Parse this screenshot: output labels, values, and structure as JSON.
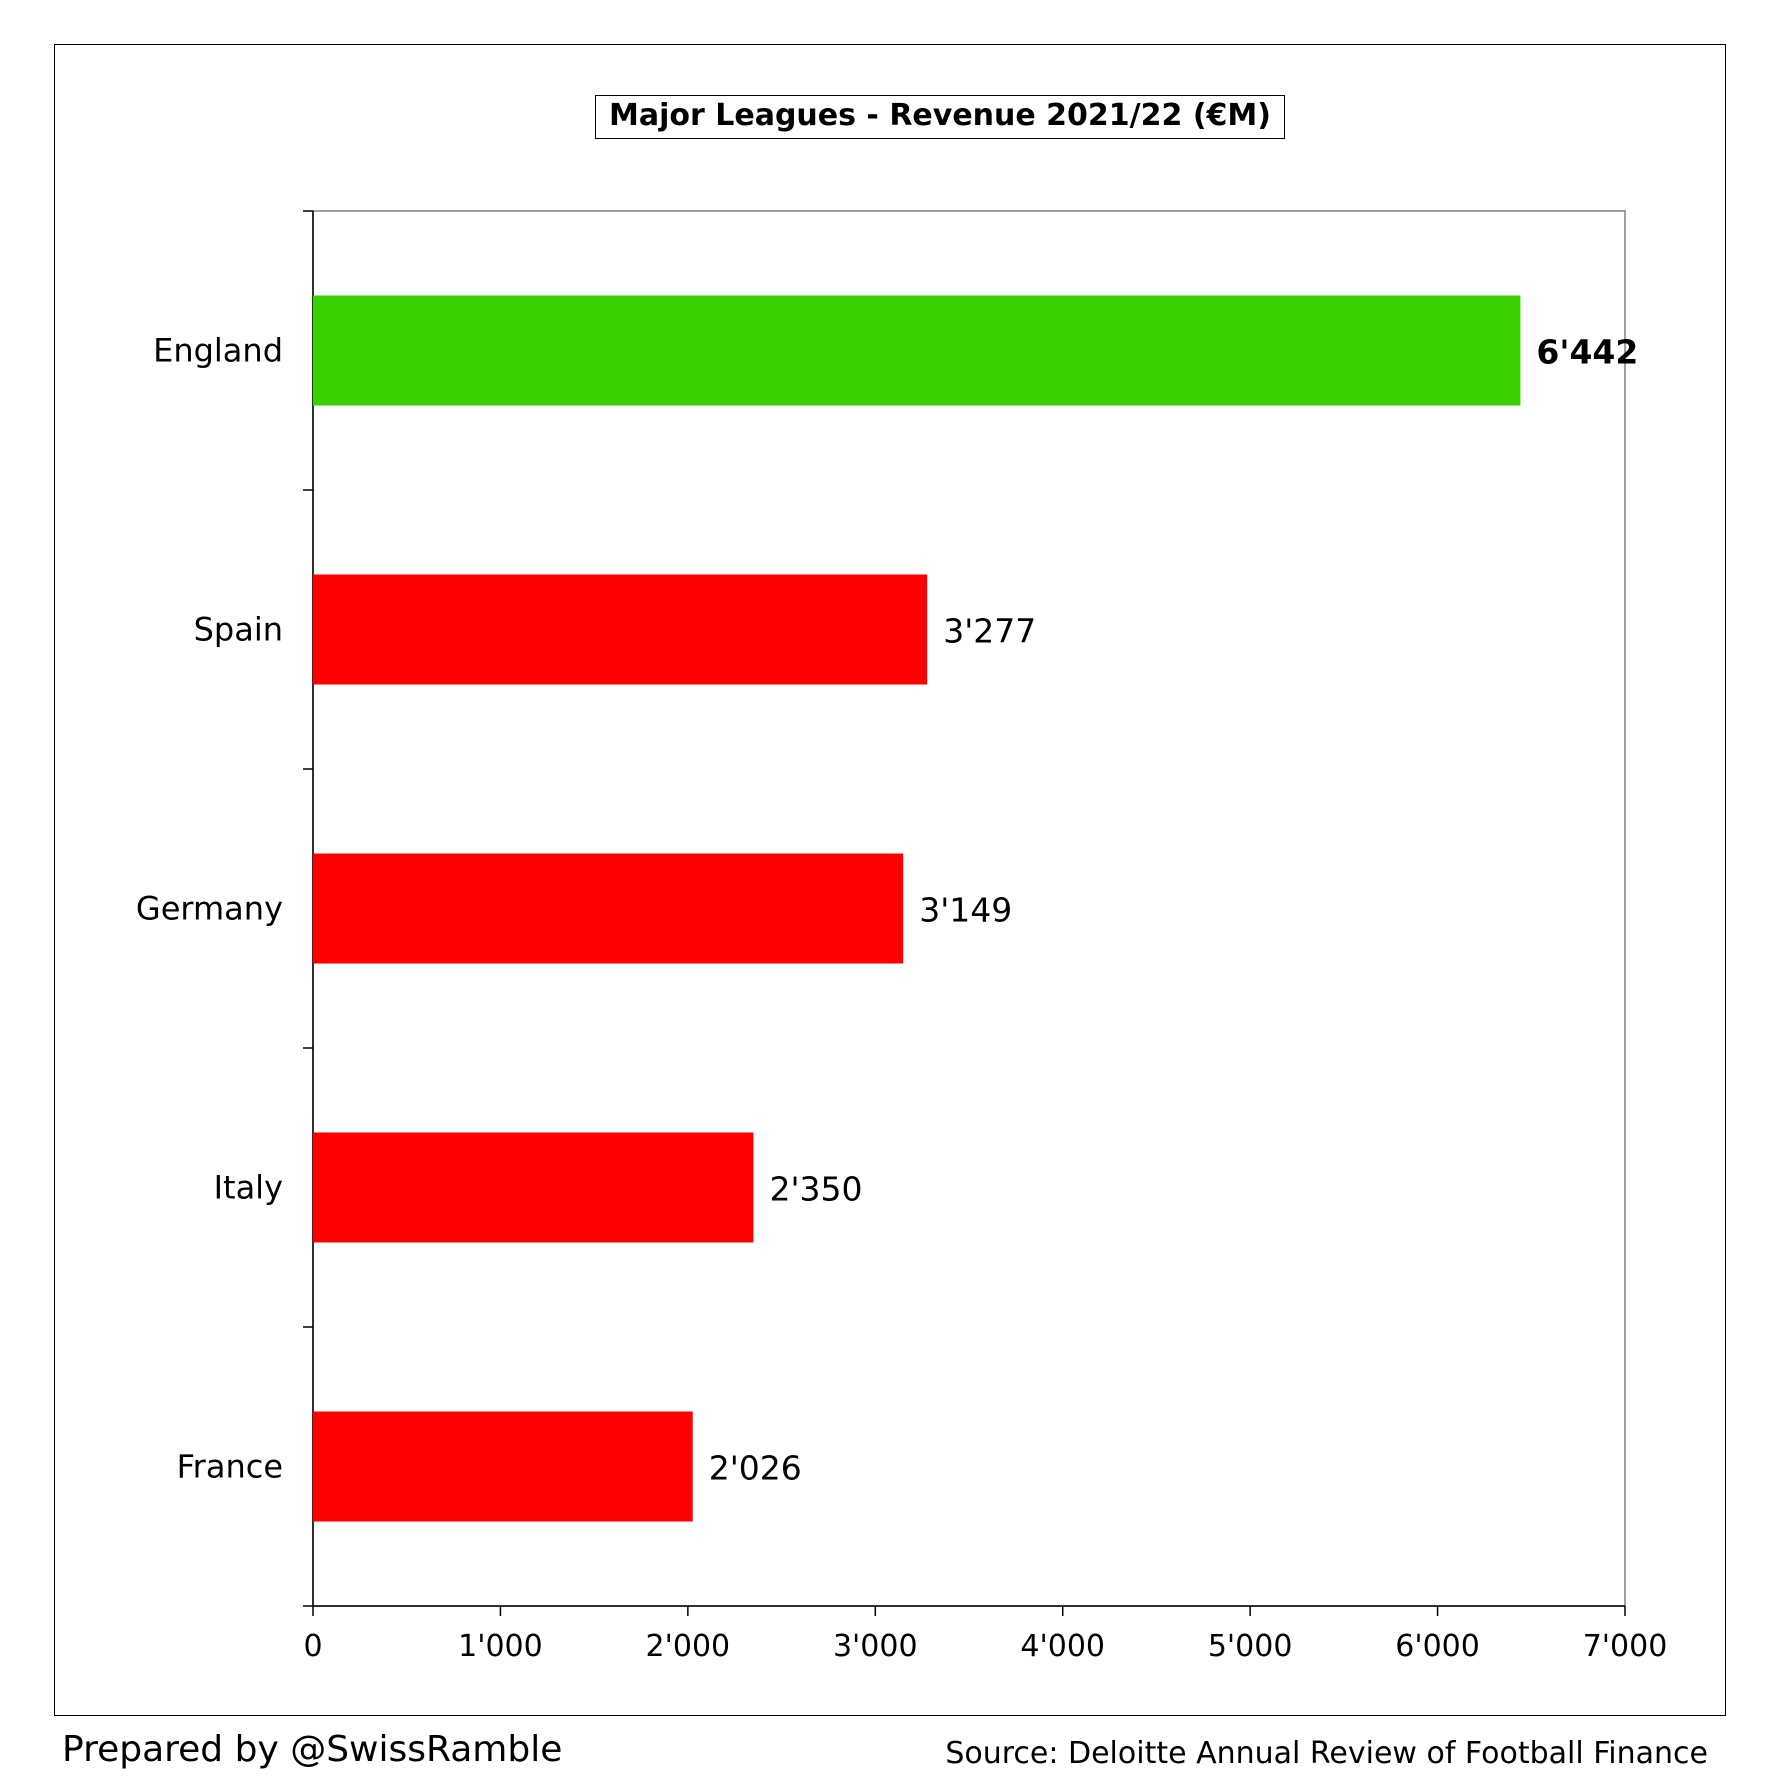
{
  "chart_data": {
    "type": "bar",
    "orientation": "horizontal",
    "title": "Major Leagues - Revenue 2021/22 (€M)",
    "categories": [
      "England",
      "Spain",
      "Germany",
      "Italy",
      "France"
    ],
    "values": [
      6442,
      3277,
      3149,
      2350,
      2026
    ],
    "value_labels": [
      "6'442",
      "3'277",
      "3'149",
      "2'350",
      "2'026"
    ],
    "highlight": [
      true,
      false,
      false,
      false,
      false
    ],
    "xlim": [
      0,
      7000
    ],
    "x_ticks": [
      0,
      1000,
      2000,
      3000,
      4000,
      5000,
      6000,
      7000
    ],
    "x_tick_labels": [
      "0",
      "1'000",
      "2'000",
      "3'000",
      "4'000",
      "5'000",
      "6'000",
      "7'000"
    ],
    "xlabel": "",
    "ylabel": "",
    "grid": false,
    "legend": "none",
    "colors": {
      "highlight_bar": "#3ad100",
      "bar": "#ff0000",
      "axis": "#000000",
      "plot_border": "#808080"
    }
  },
  "footer": {
    "prepared_by": "Prepared by @SwissRamble",
    "source": "Source: Deloitte Annual Review of Football Finance"
  }
}
